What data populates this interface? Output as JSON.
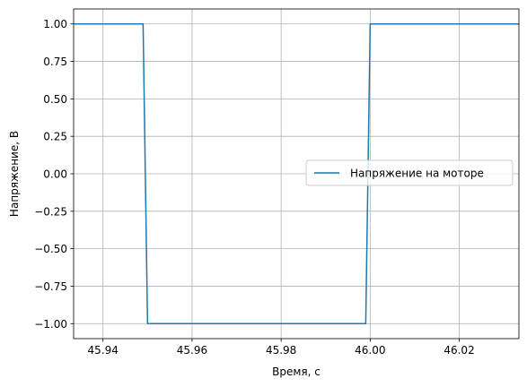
{
  "chart_data": {
    "type": "line",
    "xlabel": "Время, с",
    "ylabel": "Напряжение, В",
    "xlim": [
      45.9334,
      46.0334
    ],
    "ylim": [
      -1.1,
      1.1
    ],
    "xticks": [
      45.94,
      45.96,
      45.98,
      46.0,
      46.02
    ],
    "xtick_labels": [
      "45.94",
      "45.96",
      "45.98",
      "46.00",
      "46.02"
    ],
    "yticks": [
      1.0,
      0.75,
      0.5,
      0.25,
      0.0,
      -0.25,
      -0.5,
      -0.75,
      -1.0
    ],
    "ytick_labels": [
      "1.00",
      "0.75",
      "0.50",
      "0.25",
      "0.00",
      "−0.25",
      "−0.50",
      "−0.75",
      "−1.00"
    ],
    "grid": true,
    "legend_position": "center-right",
    "series": [
      {
        "name": "Напряжение на моторе",
        "color": "#1f77b4",
        "x": [
          45.9334,
          45.949,
          45.95,
          45.951,
          45.952,
          45.999,
          46.0,
          46.001,
          46.002,
          46.0334
        ],
        "y": [
          1.0,
          1.0,
          -1.0,
          -1.0,
          -1.0,
          -1.0,
          1.0,
          1.0,
          1.0,
          1.0
        ]
      }
    ]
  }
}
